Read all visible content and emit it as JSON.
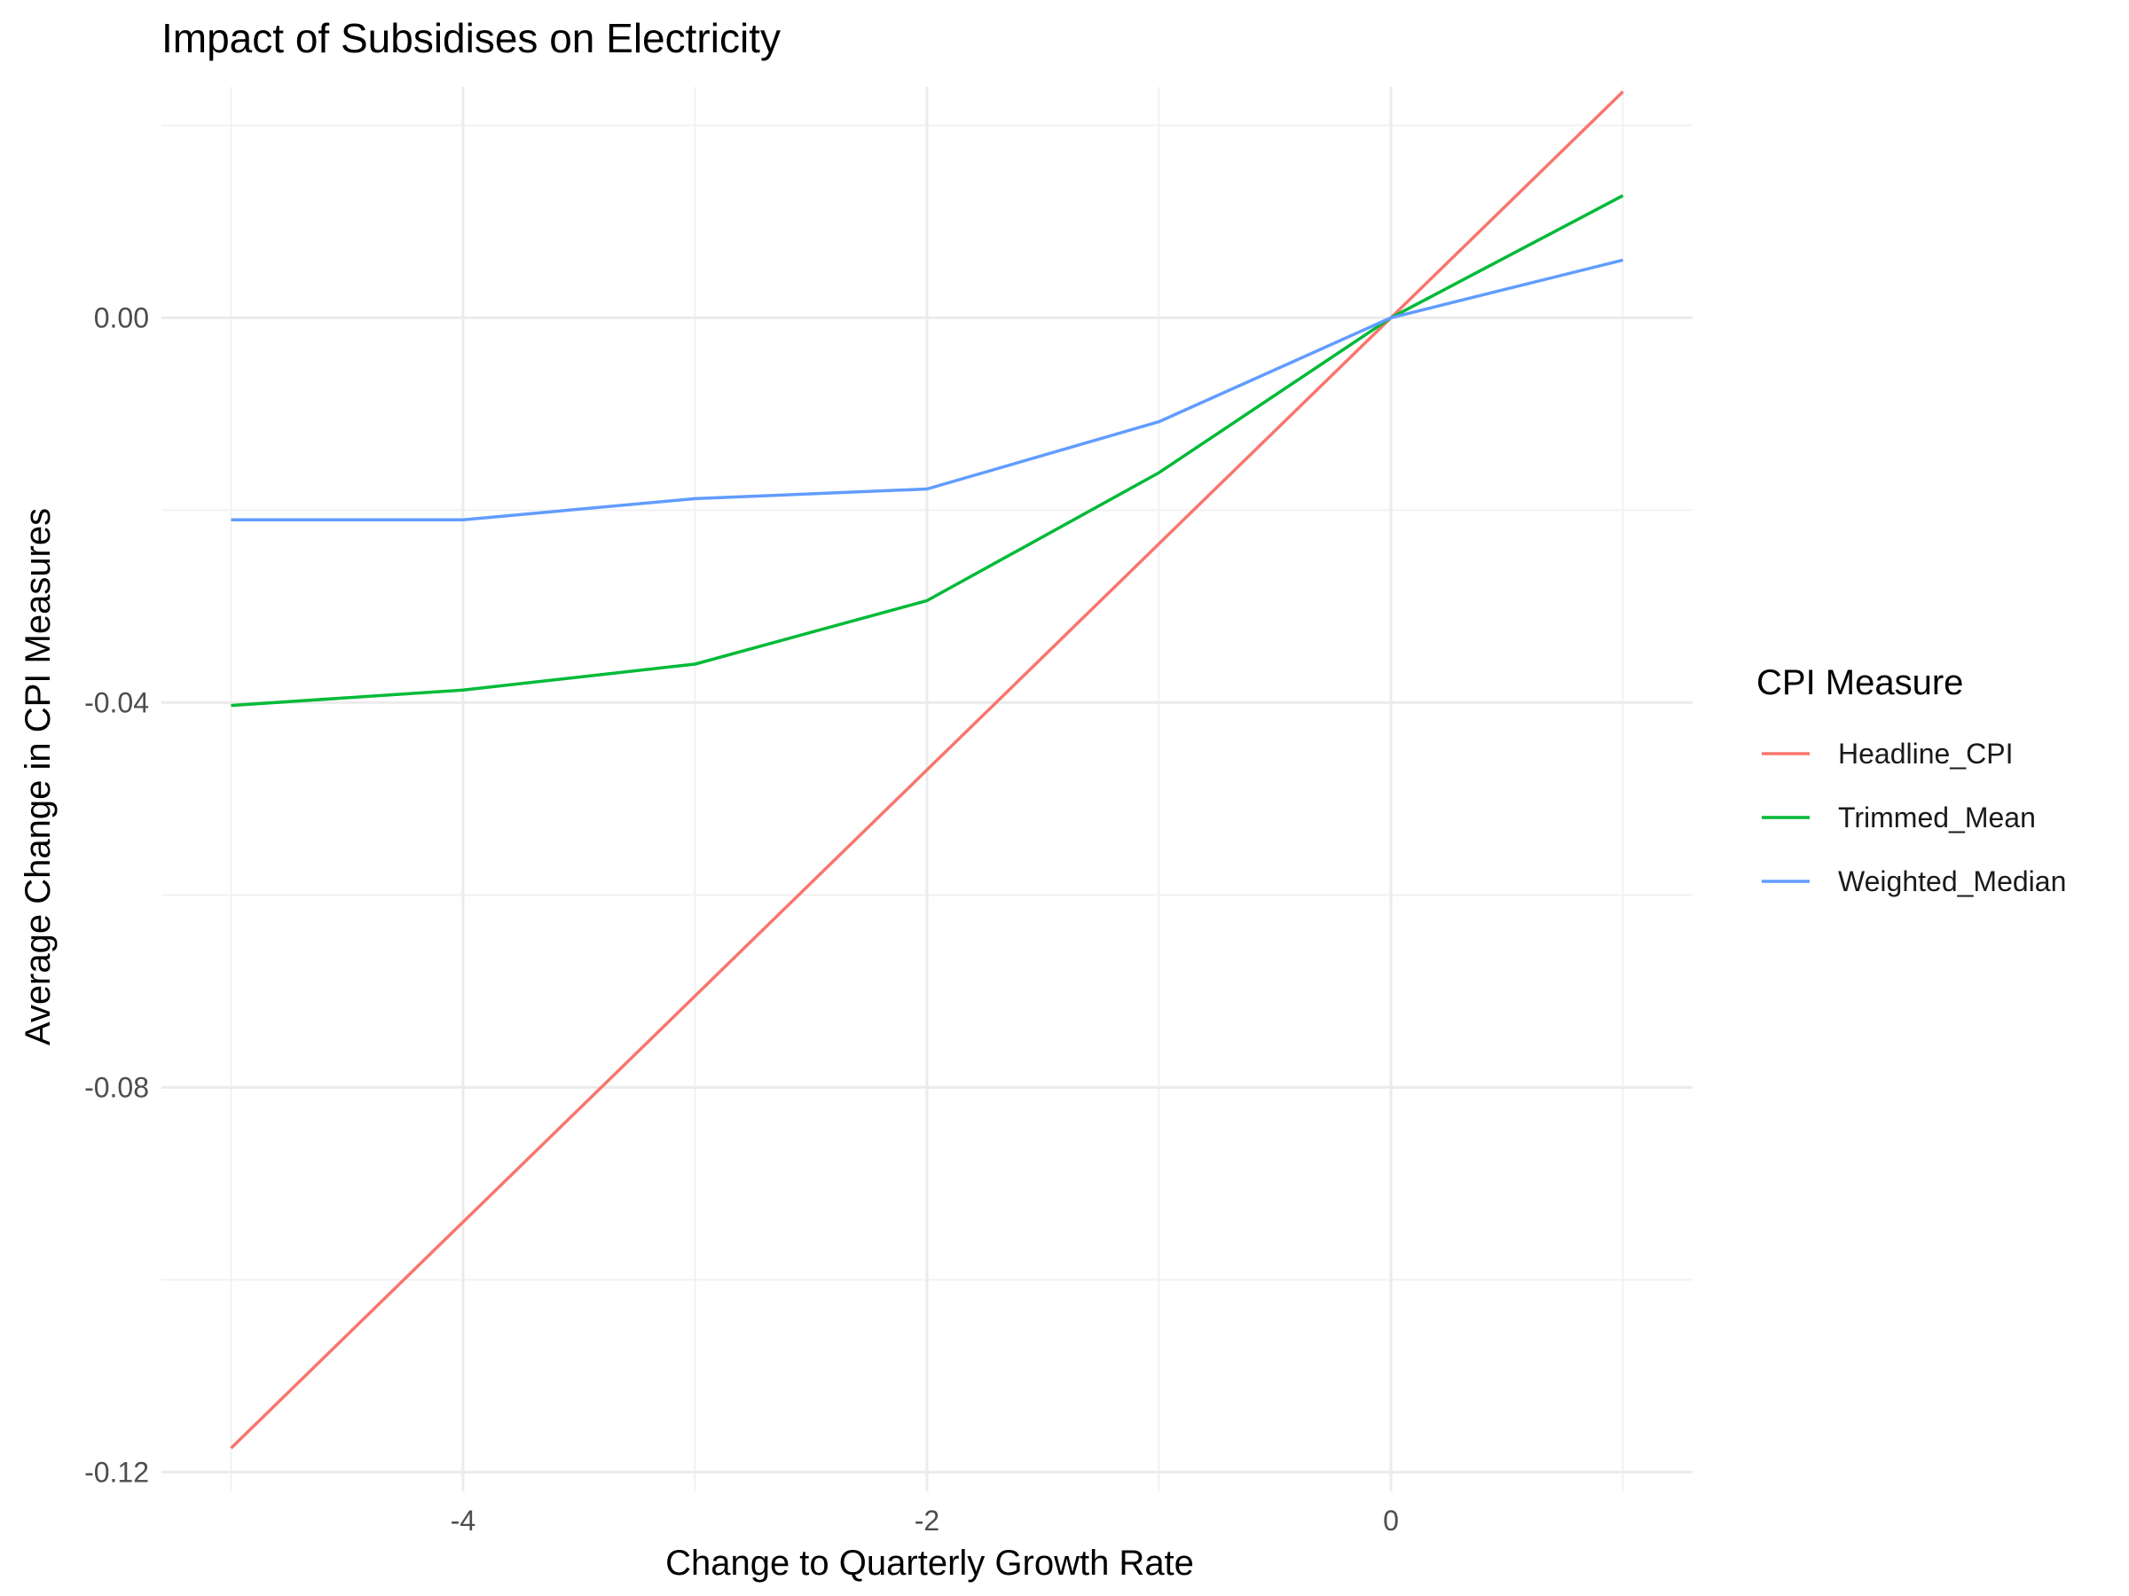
{
  "chart_data": {
    "type": "line",
    "title": "Impact of Subsidises on Electricity",
    "xlabel": "Change to Quarterly Growth Rate",
    "ylabel": "Average Change in CPI Measures",
    "x": [
      -5,
      -4,
      -3,
      -2,
      -1,
      0,
      1
    ],
    "xlim": [
      -5.3,
      1.3
    ],
    "ylim": [
      -0.122,
      0.024
    ],
    "x_ticks": [
      -4,
      -2,
      0
    ],
    "x_tick_labels": [
      "-4",
      "-2",
      "0"
    ],
    "x_minor": [
      -5,
      -3,
      -1,
      1
    ],
    "y_ticks": [
      -0.12,
      -0.08,
      -0.04,
      0.0
    ],
    "y_tick_labels": [
      "-0.12",
      "-0.08",
      "-0.04",
      "0.00"
    ],
    "y_minor": [
      -0.1,
      -0.06,
      -0.02,
      0.02
    ],
    "grid": true,
    "legend": {
      "title": "CPI Measure",
      "position": "right"
    },
    "series": [
      {
        "name": "Headline_CPI",
        "color": "#F8766D",
        "values": [
          -0.1175,
          -0.094,
          -0.0705,
          -0.047,
          -0.0235,
          0.0,
          0.0235
        ]
      },
      {
        "name": "Trimmed_Mean",
        "color": "#00BA38",
        "values": [
          -0.0403,
          -0.0387,
          -0.036,
          -0.0294,
          -0.0161,
          0.0,
          0.0127
        ]
      },
      {
        "name": "Weighted_Median",
        "color": "#619CFF",
        "values": [
          -0.021,
          -0.021,
          -0.0188,
          -0.0178,
          -0.0108,
          0.0,
          0.006
        ]
      }
    ]
  }
}
